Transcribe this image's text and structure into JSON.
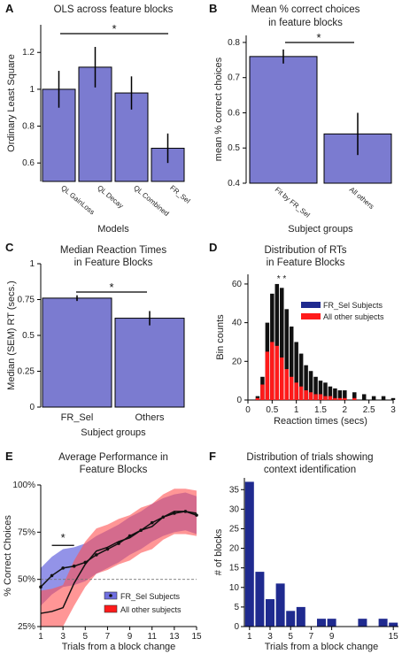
{
  "colors": {
    "bar_purple": "#7b7bd0",
    "bar_navy": "#1f2a8f",
    "red": "#ff1a1a",
    "blue_band": "#6f6fe0",
    "red_band": "#ff5050",
    "axis": "#000000"
  },
  "panels": [
    {
      "letter": "A",
      "title": [
        "OLS across feature blocks"
      ]
    },
    {
      "letter": "B",
      "title": [
        "Mean % correct choices",
        "in feature blocks"
      ]
    },
    {
      "letter": "C",
      "title": [
        "Median Reaction Times",
        "in Feature Blocks"
      ]
    },
    {
      "letter": "D",
      "title": [
        "Distribution of RTs",
        "in Feature Blocks"
      ]
    },
    {
      "letter": "E",
      "title": [
        "Average Performance in",
        "Feature Blocks"
      ]
    },
    {
      "letter": "F",
      "title": [
        "Distribution of trials showing",
        "context identification"
      ]
    }
  ],
  "chart_data": [
    {
      "type": "bar",
      "panel": "A",
      "categories": [
        "QL GainLoss",
        "QL Decay",
        "QL Combined",
        "FR_Sel"
      ],
      "values": [
        1.0,
        1.12,
        0.98,
        0.68
      ],
      "errors": [
        0.1,
        0.11,
        0.09,
        0.08
      ],
      "ylabel": "Ordinary Least Square",
      "xlabel": "Models",
      "ylim": [
        0.5,
        1.35
      ],
      "yticks": [
        "0.6",
        "0.8",
        "1",
        "1.2"
      ],
      "significance": "*"
    },
    {
      "type": "bar",
      "panel": "B",
      "categories": [
        "Fit by FR_Sel",
        "All others"
      ],
      "values": [
        0.76,
        0.54
      ],
      "errors": [
        0.02,
        0.06
      ],
      "ylabel": "mean % correct choices",
      "xlabel": "Subject groups",
      "ylim": [
        0.4,
        0.82
      ],
      "yticks": [
        "0.4",
        "0.5",
        "0.6",
        "0.7",
        "0.8"
      ],
      "significance": "*"
    },
    {
      "type": "bar",
      "panel": "C",
      "categories": [
        "FR_Sel",
        "Others"
      ],
      "values": [
        0.76,
        0.62
      ],
      "errors": [
        0.02,
        0.05
      ],
      "ylabel": "Median (SEM) RT (secs.)",
      "xlabel": "Subject groups",
      "ylim": [
        0,
        1.0
      ],
      "yticks": [
        "0",
        "0.25",
        "0.5",
        "0.75",
        "1"
      ],
      "significance": "*"
    },
    {
      "type": "bar",
      "panel": "D",
      "xlabel": "Reaction times (secs)",
      "ylabel": "Bin counts",
      "xlim": [
        0,
        3
      ],
      "ylim": [
        0,
        65
      ],
      "xticks": [
        "0",
        "0.5",
        "1",
        "1.5",
        "2",
        "2.5",
        "3"
      ],
      "yticks": [
        "0",
        "20",
        "40",
        "60"
      ],
      "legend": [
        "FR_Sel Subjects",
        "All other subjects"
      ],
      "series": [
        {
          "name": "FR_Sel Subjects",
          "x": [
            0.2,
            0.3,
            0.4,
            0.5,
            0.6,
            0.7,
            0.8,
            0.9,
            1.0,
            1.1,
            1.2,
            1.3,
            1.4,
            1.5,
            1.6,
            1.7,
            1.8,
            1.9,
            2.0,
            2.2,
            2.4,
            2.6,
            2.8,
            3.0
          ],
          "values": [
            2,
            12,
            40,
            55,
            60,
            58,
            47,
            38,
            30,
            24,
            18,
            15,
            12,
            10,
            9,
            7,
            6,
            5,
            5,
            4,
            3,
            2,
            2,
            1
          ]
        },
        {
          "name": "All other subjects",
          "x": [
            0.2,
            0.3,
            0.4,
            0.5,
            0.6,
            0.7,
            0.8,
            0.9,
            1.0,
            1.1,
            1.2,
            1.3,
            1.4,
            1.5,
            1.6,
            1.7,
            1.8,
            1.9,
            2.0,
            2.2,
            2.4,
            2.6,
            2.8,
            3.0
          ],
          "values": [
            1,
            8,
            25,
            30,
            28,
            22,
            16,
            12,
            9,
            7,
            5,
            4,
            3,
            3,
            2,
            2,
            1,
            1,
            1,
            1,
            0,
            0,
            0,
            0
          ]
        }
      ],
      "annotation": "* *"
    },
    {
      "type": "line",
      "panel": "E",
      "xlabel": "Trials from a block change",
      "ylabel": "% Correct Choices",
      "xlim": [
        1,
        15
      ],
      "ylim": [
        25,
        100
      ],
      "xticks": [
        "1",
        "3",
        "5",
        "7",
        "9",
        "11",
        "13",
        "15"
      ],
      "yticks": [
        "25%",
        "50%",
        "75%",
        "100%"
      ],
      "legend": [
        "FR_Sel Subjects",
        "All other subjects"
      ],
      "x": [
        1,
        2,
        3,
        4,
        5,
        6,
        7,
        8,
        9,
        10,
        11,
        12,
        13,
        14,
        15
      ],
      "series": [
        {
          "name": "FR_Sel Subjects",
          "values": [
            46,
            52,
            56,
            57,
            59,
            63,
            66,
            69,
            73,
            76,
            80,
            83,
            85,
            86,
            84
          ]
        },
        {
          "name": "All other subjects",
          "values": [
            32,
            33,
            35,
            48,
            58,
            65,
            67,
            70,
            72,
            76,
            78,
            83,
            86,
            86,
            85
          ]
        }
      ],
      "reference_line": 50,
      "significance": "*"
    },
    {
      "type": "bar",
      "panel": "F",
      "xlabel": "Trials from a block change",
      "ylabel": "# of blocks",
      "categories": [
        "1",
        "2",
        "3",
        "4",
        "5",
        "6",
        "7",
        "8",
        "9",
        "10",
        "11",
        "12",
        "13",
        "14",
        "15"
      ],
      "values": [
        37,
        14,
        7,
        11,
        4,
        5,
        0,
        2,
        2,
        0,
        0,
        2,
        0,
        2,
        1
      ],
      "xticks": [
        "1",
        "3",
        "5",
        "7",
        "9",
        "15"
      ],
      "yticks": [
        "0",
        "5",
        "10",
        "15",
        "20",
        "25",
        "30",
        "35"
      ],
      "ylim": [
        0,
        38
      ]
    }
  ]
}
